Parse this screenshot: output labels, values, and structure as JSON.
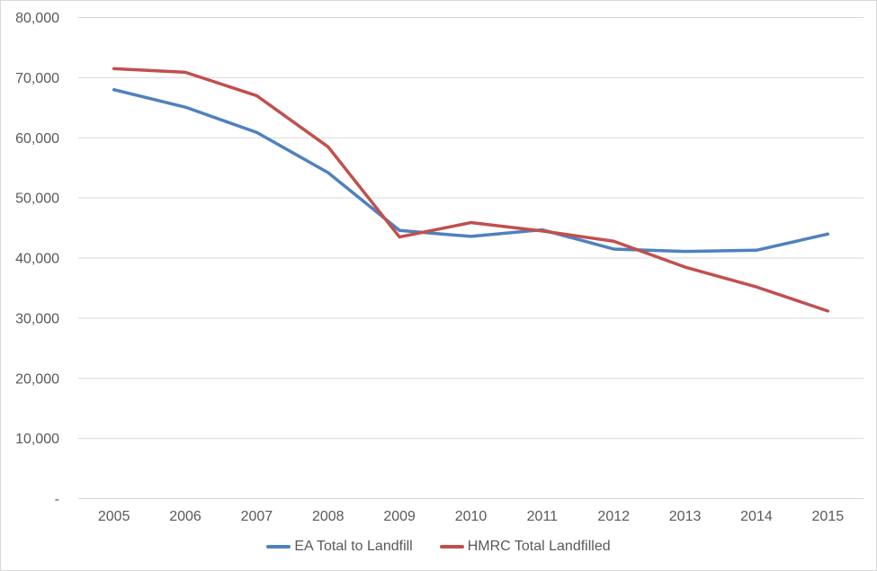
{
  "chart_data": {
    "type": "line",
    "title": "",
    "xlabel": "",
    "ylabel": "",
    "categories": [
      "2005",
      "2006",
      "2007",
      "2008",
      "2009",
      "2010",
      "2011",
      "2012",
      "2013",
      "2014",
      "2015"
    ],
    "series": [
      {
        "name": "EA Total to Landfill",
        "color": "#4f81bd",
        "values": [
          68000,
          65100,
          60900,
          54200,
          44600,
          43600,
          44700,
          41500,
          41100,
          41300,
          44000
        ]
      },
      {
        "name": "HMRC Total Landfilled",
        "color": "#c0504d",
        "values": [
          71500,
          70900,
          67000,
          58500,
          43500,
          45900,
          44500,
          42800,
          38500,
          35200,
          31200
        ]
      }
    ],
    "ylim": [
      0,
      80000
    ],
    "y_ticks": [
      {
        "value": 0,
        "label": "-"
      },
      {
        "value": 10000,
        "label": "10,000"
      },
      {
        "value": 20000,
        "label": "20,000"
      },
      {
        "value": 30000,
        "label": "30,000"
      },
      {
        "value": 40000,
        "label": "40,000"
      },
      {
        "value": 50000,
        "label": "50,000"
      },
      {
        "value": 60000,
        "label": "60,000"
      },
      {
        "value": 70000,
        "label": "70,000"
      },
      {
        "value": 80000,
        "label": "80,000"
      }
    ],
    "grid": "horizontal",
    "legend_position": "bottom",
    "colors": {
      "axis_text": "#595959",
      "gridline": "#d9d9d9",
      "chart_border": "#d9d9d9",
      "background": "#ffffff"
    }
  }
}
